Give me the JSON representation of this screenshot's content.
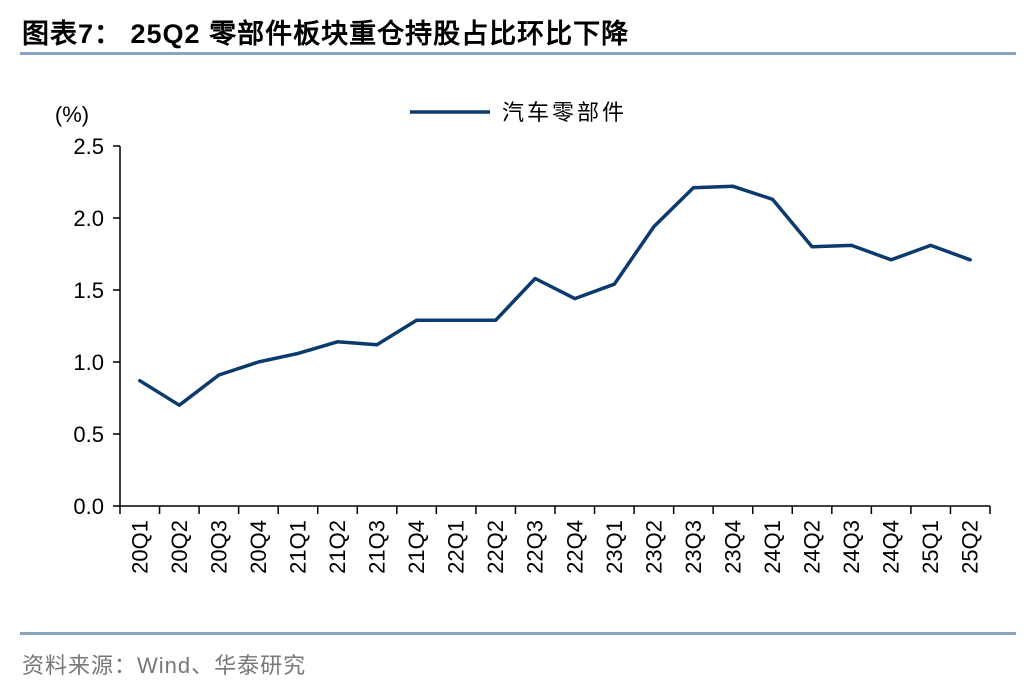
{
  "title": "图表7：  25Q2 零部件板块重仓持股占比环比下降",
  "source": "资料来源：Wind、华泰研究",
  "colors": {
    "series": "#0a3a6e",
    "axis": "#000000",
    "rule": "#8aa4bf"
  },
  "chart_data": {
    "type": "line",
    "title": "",
    "xlabel": "",
    "ylabel": "(%)",
    "ylim": [
      0,
      2.5
    ],
    "yticks": [
      "0.0",
      "0.5",
      "1.0",
      "1.5",
      "2.0",
      "2.5"
    ],
    "grid": false,
    "legend": "top-center",
    "categories": [
      "20Q1",
      "20Q2",
      "20Q3",
      "20Q4",
      "21Q1",
      "21Q2",
      "21Q3",
      "21Q4",
      "22Q1",
      "22Q2",
      "22Q3",
      "22Q4",
      "23Q1",
      "23Q2",
      "23Q3",
      "23Q4",
      "24Q1",
      "24Q2",
      "24Q3",
      "24Q4",
      "25Q1",
      "25Q2"
    ],
    "series": [
      {
        "name": "汽车零部件",
        "values": [
          0.87,
          0.7,
          0.91,
          1.0,
          1.06,
          1.14,
          1.12,
          1.29,
          1.29,
          1.29,
          1.58,
          1.44,
          1.54,
          1.94,
          2.21,
          2.22,
          2.13,
          1.8,
          1.81,
          1.71,
          1.81,
          1.71
        ]
      }
    ]
  }
}
